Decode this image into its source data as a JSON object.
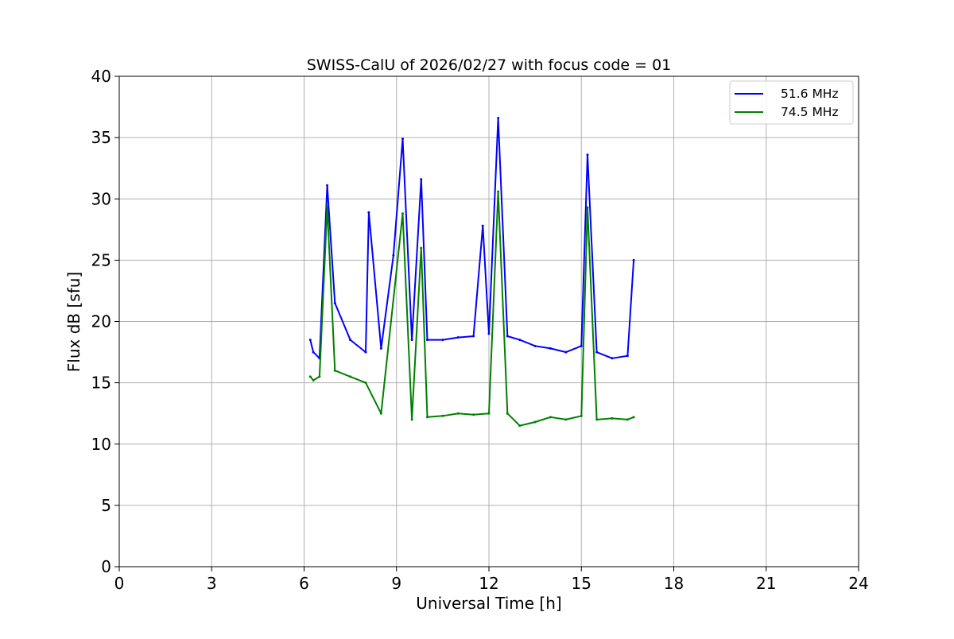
{
  "chart_data": {
    "type": "line",
    "title": "SWISS-CalU of 2026/02/27 with focus code = 01",
    "xlabel": "Universal Time [h]",
    "ylabel": "Flux dB [sfu]",
    "xlim": [
      0,
      24
    ],
    "ylim": [
      0,
      40
    ],
    "xticks": [
      0,
      3,
      6,
      9,
      12,
      15,
      18,
      21,
      24
    ],
    "yticks": [
      0,
      5,
      10,
      15,
      20,
      25,
      30,
      35,
      40
    ],
    "xtick_labels": [
      "0",
      "3",
      "6",
      "9",
      "12",
      "15",
      "18",
      "21",
      "24"
    ],
    "ytick_labels": [
      "0",
      "5",
      "10",
      "15",
      "20",
      "25",
      "30",
      "35",
      "40"
    ],
    "grid": true,
    "legend_position": "top-right",
    "series": [
      {
        "name": "51.6 MHz",
        "color": "#0000ff",
        "x": [
          6.2,
          6.3,
          6.5,
          6.75,
          7.0,
          7.5,
          8.0,
          8.1,
          8.5,
          8.9,
          9.2,
          9.5,
          9.8,
          10.0,
          10.5,
          11.0,
          11.5,
          11.8,
          12.0,
          12.3,
          12.6,
          13.0,
          13.5,
          14.0,
          14.5,
          15.0,
          15.2,
          15.5,
          16.0,
          16.5,
          16.7
        ],
        "y": [
          18.5,
          17.5,
          17.0,
          31.1,
          21.5,
          18.5,
          17.5,
          28.9,
          17.8,
          25.4,
          34.9,
          18.5,
          31.6,
          18.5,
          18.5,
          18.7,
          18.8,
          27.8,
          19.0,
          36.6,
          18.8,
          18.5,
          18.0,
          17.8,
          17.5,
          18.0,
          33.6,
          17.5,
          17.0,
          17.2,
          25.0
        ]
      },
      {
        "name": "74.5 MHz",
        "color": "#008000",
        "x": [
          6.2,
          6.3,
          6.5,
          6.75,
          7.0,
          7.5,
          8.0,
          8.5,
          9.2,
          9.5,
          9.8,
          10.0,
          10.5,
          11.0,
          11.5,
          12.0,
          12.3,
          12.6,
          13.0,
          13.5,
          14.0,
          14.5,
          15.0,
          15.2,
          15.5,
          16.0,
          16.5,
          16.7
        ],
        "y": [
          15.5,
          15.2,
          15.5,
          29.4,
          16.0,
          15.5,
          15.0,
          12.5,
          28.8,
          12.0,
          26.0,
          12.2,
          12.3,
          12.5,
          12.4,
          12.5,
          30.6,
          12.5,
          11.5,
          11.8,
          12.2,
          12.0,
          12.3,
          29.3,
          12.0,
          12.1,
          12.0,
          12.2
        ]
      }
    ]
  }
}
